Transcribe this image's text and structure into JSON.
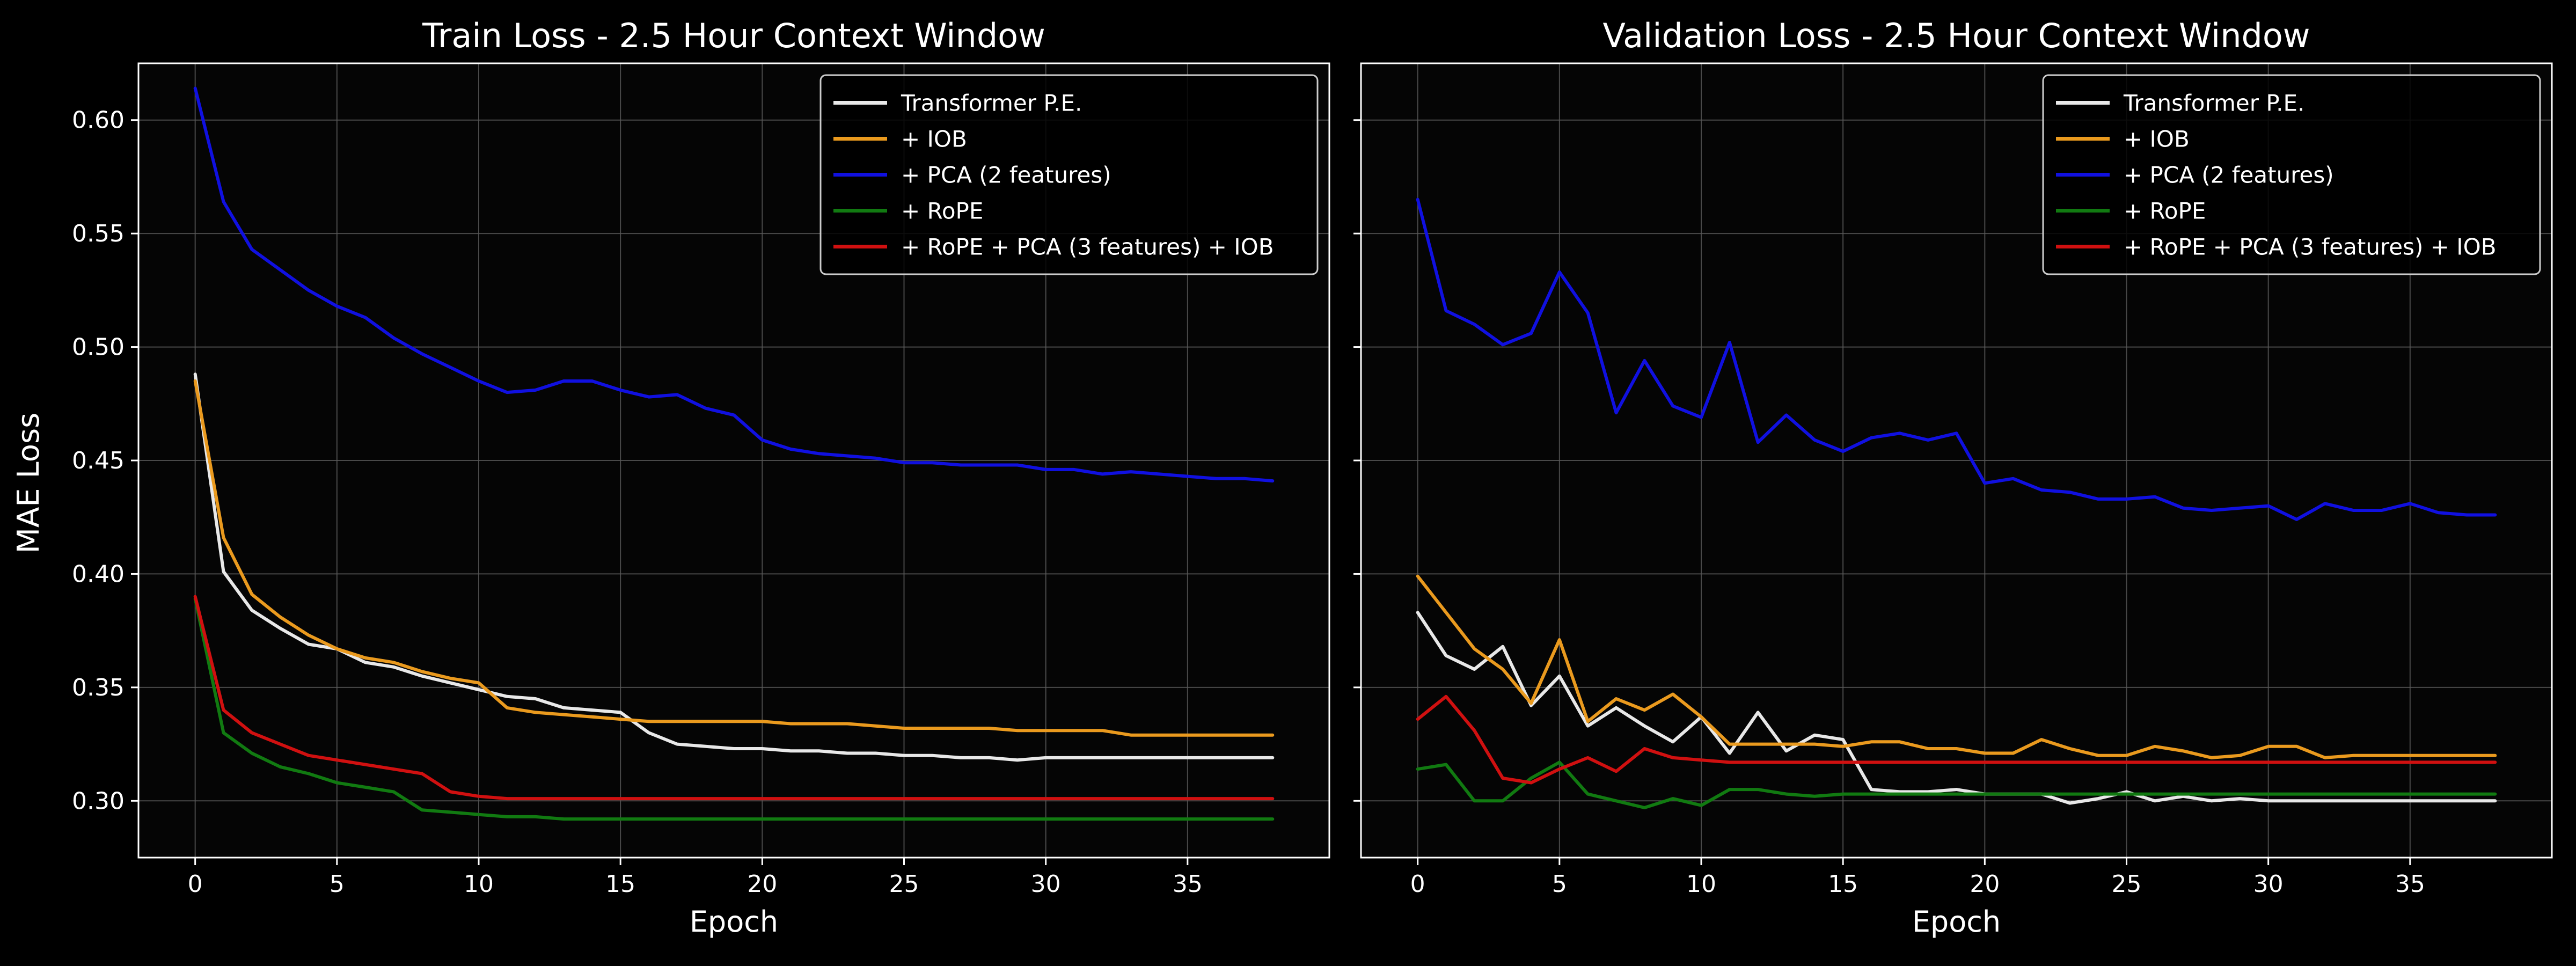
{
  "figure": {
    "background": "#000000",
    "axes_background": "#050505",
    "grid_color": "#5a5a5a",
    "shared_ylabel": "MAE Loss"
  },
  "chart_data": [
    {
      "type": "line",
      "title": "Train Loss - 2.5 Hour Context Window",
      "xlabel": "Epoch",
      "ylabel": "MAE Loss",
      "xlim": [
        -2,
        40
      ],
      "ylim": [
        0.275,
        0.625
      ],
      "xticks": [
        0,
        5,
        10,
        15,
        20,
        25,
        30,
        35
      ],
      "yticks": [
        0.3,
        0.35,
        0.4,
        0.45,
        0.5,
        0.55,
        0.6
      ],
      "grid": true,
      "legend_position": "top-right",
      "x": [
        0,
        1,
        2,
        3,
        4,
        5,
        6,
        7,
        8,
        9,
        10,
        11,
        12,
        13,
        14,
        15,
        16,
        17,
        18,
        19,
        20,
        21,
        22,
        23,
        24,
        25,
        26,
        27,
        28,
        29,
        30,
        31,
        32,
        33,
        34,
        35,
        36,
        37,
        38
      ],
      "series": [
        {
          "name": "Transformer P.E.",
          "color": "#e8e8e8",
          "values": [
            0.488,
            0.401,
            0.384,
            0.376,
            0.369,
            0.367,
            0.361,
            0.359,
            0.355,
            0.352,
            0.349,
            0.346,
            0.345,
            0.341,
            0.34,
            0.339,
            0.33,
            0.325,
            0.324,
            0.323,
            0.323,
            0.322,
            0.322,
            0.321,
            0.321,
            0.32,
            0.32,
            0.319,
            0.319,
            0.318,
            0.319,
            0.319,
            0.319,
            0.319,
            0.319,
            0.319,
            0.319,
            0.319,
            0.319
          ]
        },
        {
          "name": "+ IOB",
          "color": "#ea9a1e",
          "values": [
            0.485,
            0.416,
            0.391,
            0.381,
            0.373,
            0.367,
            0.363,
            0.361,
            0.357,
            0.354,
            0.352,
            0.341,
            0.339,
            0.338,
            0.337,
            0.336,
            0.335,
            0.335,
            0.335,
            0.335,
            0.335,
            0.334,
            0.334,
            0.334,
            0.333,
            0.332,
            0.332,
            0.332,
            0.332,
            0.331,
            0.331,
            0.331,
            0.331,
            0.329,
            0.329,
            0.329,
            0.329,
            0.329,
            0.329
          ]
        },
        {
          "name": "+ PCA (2 features)",
          "color": "#1010e0",
          "values": [
            0.614,
            0.564,
            0.543,
            0.534,
            0.525,
            0.518,
            0.513,
            0.504,
            0.497,
            0.491,
            0.485,
            0.48,
            0.481,
            0.485,
            0.485,
            0.481,
            0.478,
            0.479,
            0.473,
            0.47,
            0.459,
            0.455,
            0.453,
            0.452,
            0.451,
            0.449,
            0.449,
            0.448,
            0.448,
            0.448,
            0.446,
            0.446,
            0.444,
            0.445,
            0.444,
            0.443,
            0.442,
            0.442,
            0.441
          ]
        },
        {
          "name": "+ RoPE",
          "color": "#117a11",
          "values": [
            0.389,
            0.33,
            0.321,
            0.315,
            0.312,
            0.308,
            0.306,
            0.304,
            0.296,
            0.295,
            0.294,
            0.293,
            0.293,
            0.292,
            0.292,
            0.292,
            0.292,
            0.292,
            0.292,
            0.292,
            0.292,
            0.292,
            0.292,
            0.292,
            0.292,
            0.292,
            0.292,
            0.292,
            0.292,
            0.292,
            0.292,
            0.292,
            0.292,
            0.292,
            0.292,
            0.292,
            0.292,
            0.292,
            0.292
          ]
        },
        {
          "name": "+ RoPE + PCA (3 features) + IOB",
          "color": "#d01010",
          "values": [
            0.39,
            0.34,
            0.33,
            0.325,
            0.32,
            0.318,
            0.316,
            0.314,
            0.312,
            0.304,
            0.302,
            0.301,
            0.301,
            0.301,
            0.301,
            0.301,
            0.301,
            0.301,
            0.301,
            0.301,
            0.301,
            0.301,
            0.301,
            0.301,
            0.301,
            0.301,
            0.301,
            0.301,
            0.301,
            0.301,
            0.301,
            0.301,
            0.301,
            0.301,
            0.301,
            0.301,
            0.301,
            0.301,
            0.301
          ]
        }
      ]
    },
    {
      "type": "line",
      "title": "Validation Loss - 2.5 Hour Context Window",
      "xlabel": "Epoch",
      "ylabel": "",
      "xlim": [
        -2,
        40
      ],
      "ylim": [
        0.275,
        0.625
      ],
      "xticks": [
        0,
        5,
        10,
        15,
        20,
        25,
        30,
        35
      ],
      "yticks": [
        0.3,
        0.35,
        0.4,
        0.45,
        0.5,
        0.55,
        0.6
      ],
      "grid": true,
      "legend_position": "top-right",
      "x": [
        0,
        1,
        2,
        3,
        4,
        5,
        6,
        7,
        8,
        9,
        10,
        11,
        12,
        13,
        14,
        15,
        16,
        17,
        18,
        19,
        20,
        21,
        22,
        23,
        24,
        25,
        26,
        27,
        28,
        29,
        30,
        31,
        32,
        33,
        34,
        35,
        36,
        37,
        38
      ],
      "series": [
        {
          "name": "Transformer P.E.",
          "color": "#e8e8e8",
          "values": [
            0.383,
            0.364,
            0.358,
            0.368,
            0.342,
            0.355,
            0.333,
            0.341,
            0.333,
            0.326,
            0.337,
            0.321,
            0.339,
            0.322,
            0.329,
            0.327,
            0.305,
            0.304,
            0.304,
            0.305,
            0.303,
            0.303,
            0.303,
            0.299,
            0.301,
            0.304,
            0.3,
            0.302,
            0.3,
            0.301,
            0.3,
            0.3,
            0.3,
            0.3,
            0.3,
            0.3,
            0.3,
            0.3,
            0.3
          ]
        },
        {
          "name": "+ IOB",
          "color": "#ea9a1e",
          "values": [
            0.399,
            0.383,
            0.367,
            0.358,
            0.343,
            0.371,
            0.335,
            0.345,
            0.34,
            0.347,
            0.337,
            0.325,
            0.325,
            0.325,
            0.325,
            0.324,
            0.326,
            0.326,
            0.323,
            0.323,
            0.321,
            0.321,
            0.327,
            0.323,
            0.32,
            0.32,
            0.324,
            0.322,
            0.319,
            0.32,
            0.324,
            0.324,
            0.319,
            0.32,
            0.32,
            0.32,
            0.32,
            0.32,
            0.32
          ]
        },
        {
          "name": "+ PCA (2 features)",
          "color": "#1010e0",
          "values": [
            0.565,
            0.516,
            0.51,
            0.501,
            0.506,
            0.533,
            0.515,
            0.471,
            0.494,
            0.474,
            0.469,
            0.502,
            0.458,
            0.47,
            0.459,
            0.454,
            0.46,
            0.462,
            0.459,
            0.462,
            0.44,
            0.442,
            0.437,
            0.436,
            0.433,
            0.433,
            0.434,
            0.429,
            0.428,
            0.429,
            0.43,
            0.424,
            0.431,
            0.428,
            0.428,
            0.431,
            0.427,
            0.426,
            0.426
          ]
        },
        {
          "name": "+ RoPE",
          "color": "#117a11",
          "values": [
            0.314,
            0.316,
            0.3,
            0.3,
            0.31,
            0.317,
            0.303,
            0.3,
            0.297,
            0.301,
            0.298,
            0.305,
            0.305,
            0.303,
            0.302,
            0.303,
            0.303,
            0.303,
            0.303,
            0.303,
            0.303,
            0.303,
            0.303,
            0.303,
            0.303,
            0.303,
            0.303,
            0.303,
            0.303,
            0.303,
            0.303,
            0.303,
            0.303,
            0.303,
            0.303,
            0.303,
            0.303,
            0.303,
            0.303
          ]
        },
        {
          "name": "+ RoPE + PCA (3 features) + IOB",
          "color": "#d01010",
          "values": [
            0.336,
            0.346,
            0.331,
            0.31,
            0.308,
            0.314,
            0.319,
            0.313,
            0.323,
            0.319,
            0.318,
            0.317,
            0.317,
            0.317,
            0.317,
            0.317,
            0.317,
            0.317,
            0.317,
            0.317,
            0.317,
            0.317,
            0.317,
            0.317,
            0.317,
            0.317,
            0.317,
            0.317,
            0.317,
            0.317,
            0.317,
            0.317,
            0.317,
            0.317,
            0.317,
            0.317,
            0.317,
            0.317,
            0.317
          ]
        }
      ]
    }
  ]
}
